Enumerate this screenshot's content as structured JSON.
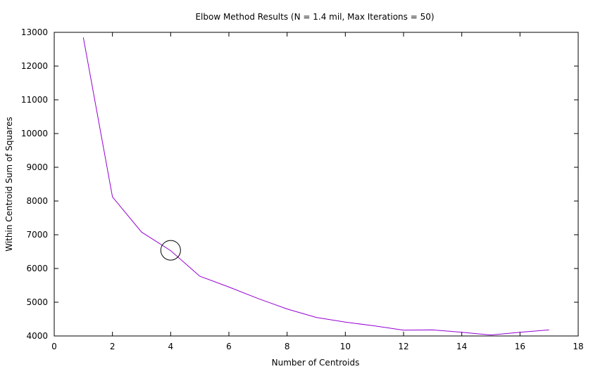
{
  "chart_data": {
    "type": "line",
    "title": "Elbow Method Results (N = 1.4 mil, Max Iterations = 50)",
    "xlabel": "Number of Centroids",
    "ylabel": "Within Centroid Sum of Squares",
    "xlim": [
      0,
      18
    ],
    "ylim": [
      4000,
      13000
    ],
    "xticks": [
      "0",
      "2",
      "4",
      "6",
      "8",
      "10",
      "12",
      "14",
      "16",
      "18"
    ],
    "yticks": [
      "4000",
      "5000",
      "6000",
      "7000",
      "8000",
      "9000",
      "10000",
      "11000",
      "12000",
      "13000"
    ],
    "grid": false,
    "series": [
      {
        "color": "#9400d3",
        "x": [
          1,
          2,
          3,
          4,
          5,
          6,
          7,
          8,
          9,
          10,
          11,
          12,
          13,
          14,
          15,
          16,
          17
        ],
        "y": [
          12850,
          8120,
          7080,
          6530,
          5770,
          5450,
          5110,
          4800,
          4550,
          4410,
          4300,
          4170,
          4180,
          4110,
          4030,
          4110,
          4180
        ]
      }
    ],
    "annotations": [
      {
        "shape": "circle",
        "x": 4,
        "y": 6540,
        "color": "#000000"
      }
    ]
  }
}
